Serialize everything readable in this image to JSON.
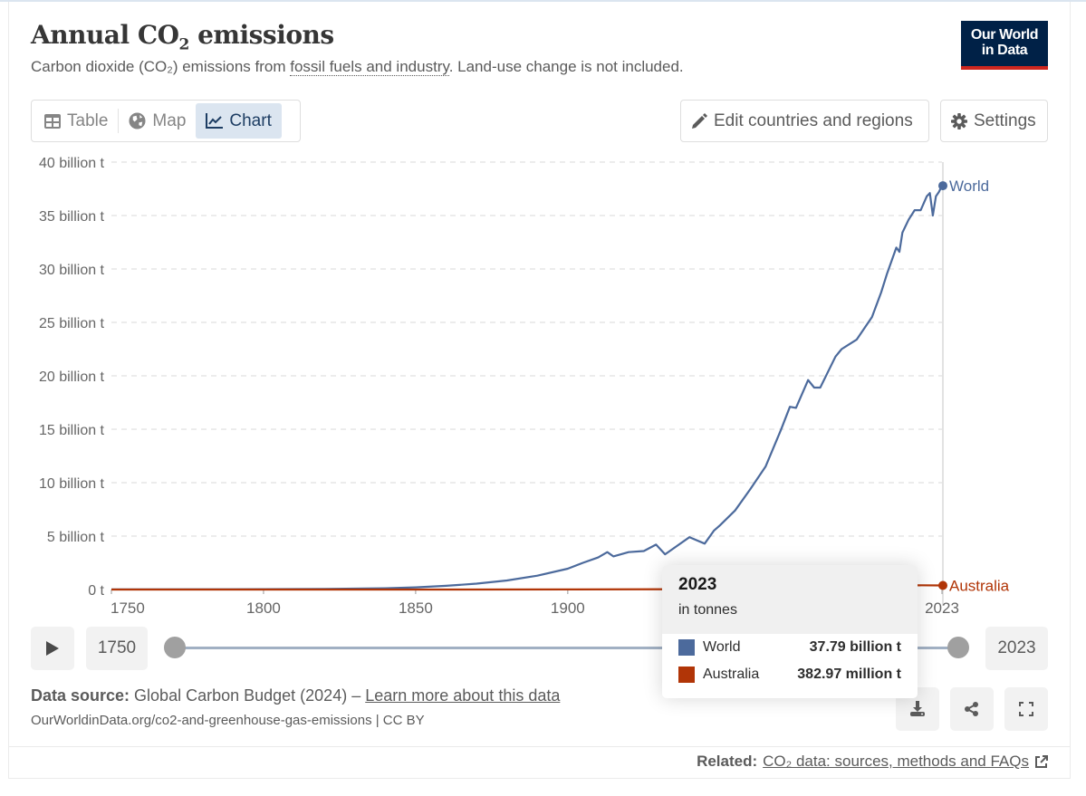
{
  "header": {
    "title_prefix": "Annual CO",
    "title_sub": "2",
    "title_suffix": " emissions",
    "subtitle_prefix": "Carbon dioxide (CO₂) emissions from ",
    "subtitle_link": "fossil fuels and industry",
    "subtitle_suffix": ". Land-use change is not included.",
    "logo_line1": "Our World",
    "logo_line2": "in Data"
  },
  "tabs": [
    {
      "label": "Table",
      "icon": "table-icon",
      "active": false
    },
    {
      "label": "Map",
      "icon": "globe-icon",
      "active": false
    },
    {
      "label": "Chart",
      "icon": "line-chart-icon",
      "active": true
    }
  ],
  "toolbar": {
    "edit_label": "Edit countries and regions",
    "settings_label": "Settings"
  },
  "colors": {
    "world": "#4c6a9c",
    "australia": "#b13507",
    "brand": "#002147",
    "brand_accent": "#ce261e"
  },
  "chart_data": {
    "type": "line",
    "title": "Annual CO₂ emissions",
    "xlabel": "",
    "ylabel": "",
    "xlim": [
      1750,
      2023
    ],
    "ylim": [
      0,
      40
    ],
    "y_unit": "billion t",
    "y_ticks": [
      0,
      5,
      10,
      15,
      20,
      25,
      30,
      35,
      40
    ],
    "y_tick_labels": [
      "0 t",
      "5 billion t",
      "10 billion t",
      "15 billion t",
      "20 billion t",
      "25 billion t",
      "30 billion t",
      "35 billion t",
      "40 billion t"
    ],
    "x_ticks": [
      1750,
      1800,
      1850,
      1900,
      2023
    ],
    "x_tick_labels": [
      "1750",
      "1800",
      "1850",
      "1900",
      "2023"
    ],
    "grid": true,
    "legend": "inline-right",
    "series": [
      {
        "name": "World",
        "x": [
          1750,
          1800,
          1820,
          1840,
          1850,
          1860,
          1870,
          1880,
          1890,
          1900,
          1905,
          1910,
          1913,
          1915,
          1920,
          1925,
          1929,
          1932,
          1935,
          1940,
          1945,
          1948,
          1950,
          1955,
          1960,
          1965,
          1970,
          1973,
          1975,
          1979,
          1981,
          1983,
          1988,
          1990,
          1995,
          2000,
          2003,
          2005,
          2008,
          2009,
          2010,
          2012,
          2014,
          2016,
          2018,
          2019,
          2020,
          2021,
          2022,
          2023
        ],
        "values": [
          0.01,
          0.03,
          0.05,
          0.12,
          0.2,
          0.35,
          0.55,
          0.85,
          1.3,
          1.95,
          2.5,
          3.0,
          3.5,
          3.1,
          3.5,
          3.6,
          4.2,
          3.3,
          3.9,
          4.9,
          4.3,
          5.5,
          6.0,
          7.4,
          9.4,
          11.5,
          14.9,
          17.1,
          17.0,
          19.6,
          18.9,
          18.9,
          21.8,
          22.5,
          23.4,
          25.5,
          27.8,
          29.6,
          32.0,
          31.6,
          33.4,
          34.6,
          35.5,
          35.5,
          36.8,
          37.1,
          35.0,
          36.8,
          37.2,
          37.79
        ]
      },
      {
        "name": "Australia",
        "x": [
          1750,
          1850,
          1900,
          1950,
          1980,
          2000,
          2010,
          2023
        ],
        "values": [
          0,
          0.0,
          0.01,
          0.03,
          0.2,
          0.35,
          0.41,
          0.38297
        ]
      }
    ]
  },
  "tooltip": {
    "year": "2023",
    "unit": "in tonnes",
    "rows": [
      {
        "name": "World",
        "value": "37.79 billion t"
      },
      {
        "name": "Australia",
        "value": "382.97 million t"
      }
    ]
  },
  "timeline": {
    "start_year": "1750",
    "end_year": "2023",
    "play_icon": "play-icon"
  },
  "footer": {
    "source_label": "Data source:",
    "source_text": " Global Carbon Budget (2024) – ",
    "source_link": "Learn more about this data",
    "url_text": "OurWorldinData.org/co2-and-greenhouse-gas-emissions | CC BY",
    "related_label": "Related:",
    "related_link": "CO₂ data: sources, methods and FAQs"
  }
}
